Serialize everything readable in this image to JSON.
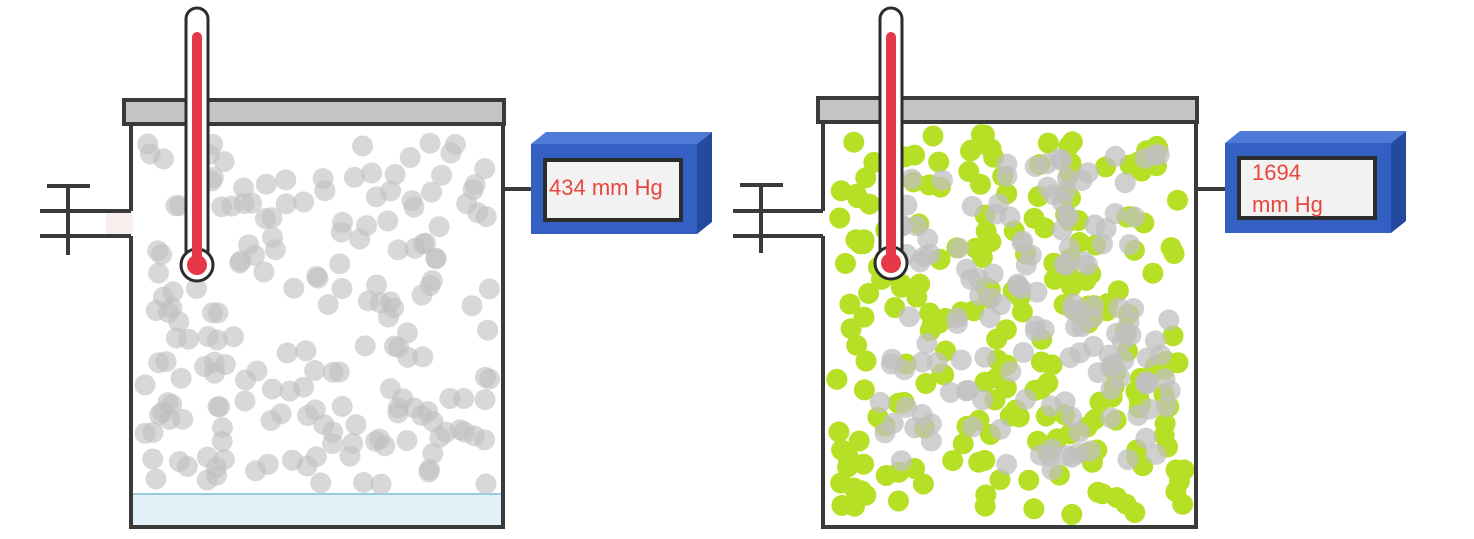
{
  "colors": {
    "background": "#ffffff",
    "container_outline": "#3a3a3a",
    "lid_fill": "#c4c4c4",
    "gas_particle": "#c0c0c0",
    "added_particle": "#b6e025",
    "liquid_fill": "#e0f1f8",
    "liquid_line": "#93cde0",
    "thermometer_red": "#e53947",
    "gauge_front": "#3560c3",
    "gauge_top": "#4f7ad8",
    "gauge_side": "#234a9e",
    "gauge_screen": "#f2f2f2",
    "gauge_text": "#e8453c"
  },
  "containers": [
    {
      "id": "container-1",
      "particle_colors": [
        "gas_particle"
      ],
      "has_liquid_layer": true,
      "gauge": {
        "line1": "434 mm Hg",
        "line2": ""
      }
    },
    {
      "id": "container-2",
      "particle_colors": [
        "added_particle",
        "gas_particle"
      ],
      "has_liquid_layer": false,
      "gauge": {
        "line1": "1694",
        "line2": "mm Hg"
      }
    }
  ]
}
